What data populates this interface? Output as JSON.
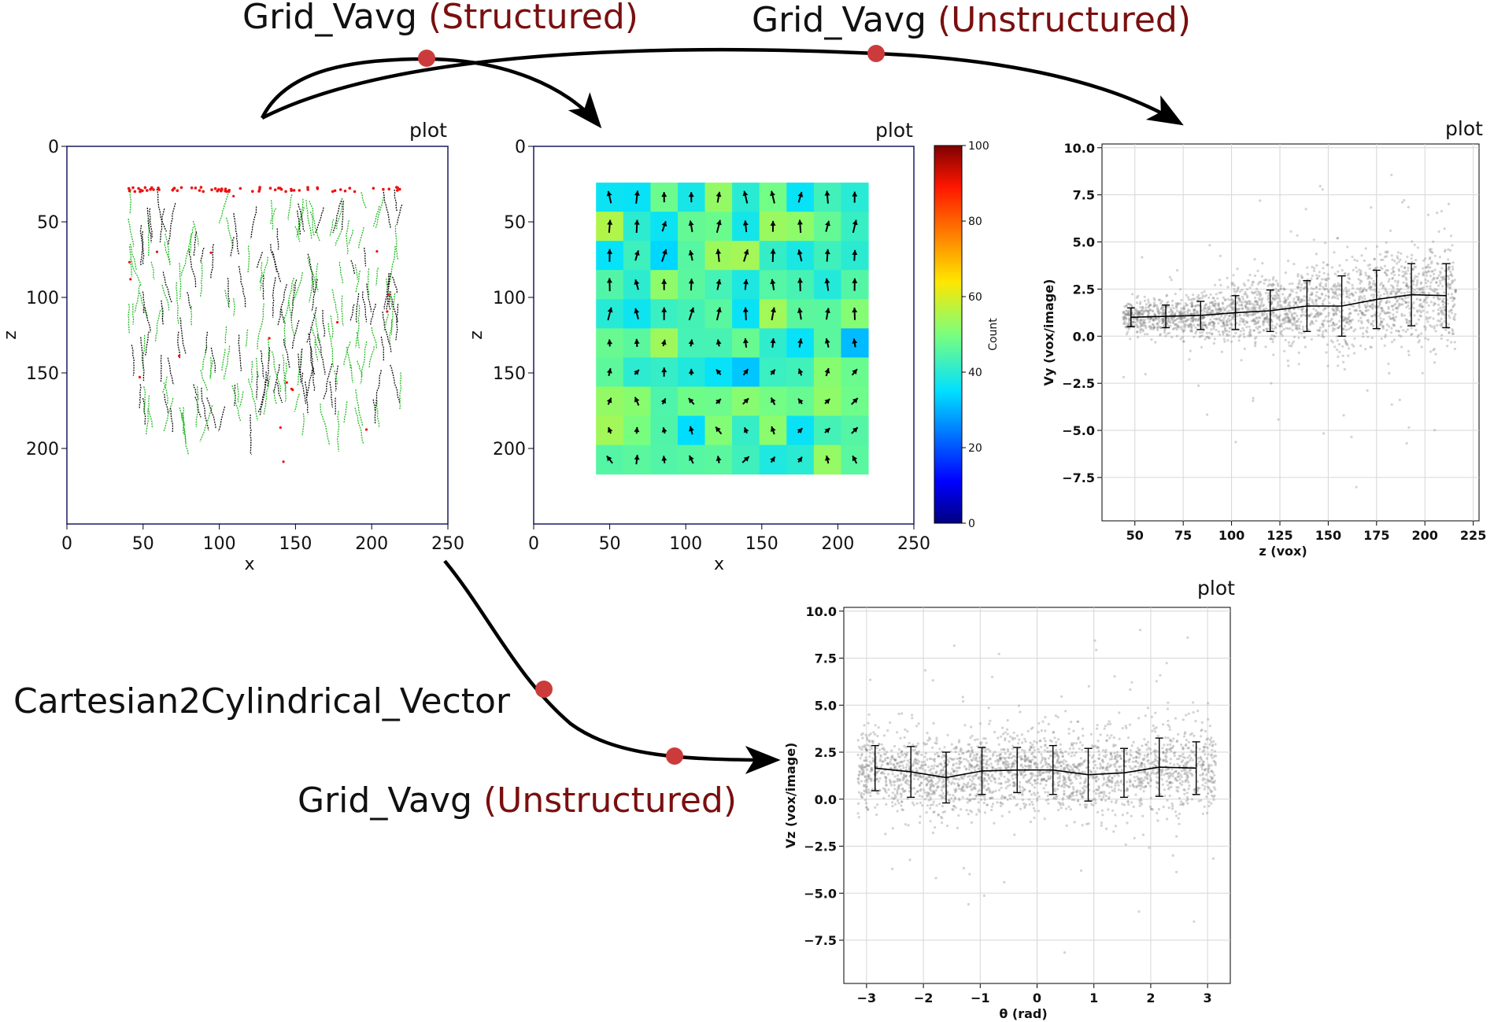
{
  "colors": {
    "accent": "#7a0f0f",
    "node": "#cc3b3b",
    "flow_arrow": "#000000",
    "panel_frame": "#1a1a66",
    "green_track": "#22bb22",
    "red_track_start": "#ee1111",
    "scatter_point": "#808080"
  },
  "labels": {
    "edge_top_left": {
      "name": "Grid_Vavg",
      "mode": "(Structured)"
    },
    "edge_top_right": {
      "name": "Grid_Vavg",
      "mode": "(Unstructured)"
    },
    "edge_middle": {
      "name": "Cartesian2Cylindrical_Vector"
    },
    "edge_bottom": {
      "name": "Grid_Vavg",
      "mode": "(Unstructured)"
    }
  },
  "panels": {
    "tracks": {
      "title": "plot",
      "xlabel": "x",
      "ylabel": "z",
      "xticks": [
        "0",
        "50",
        "100",
        "150",
        "200",
        "250"
      ],
      "yticks": [
        "0",
        "50",
        "100",
        "150",
        "200"
      ]
    },
    "grid": {
      "title": "plot",
      "xlabel": "x",
      "ylabel": "z",
      "xticks": [
        "0",
        "50",
        "100",
        "150",
        "200",
        "250"
      ],
      "yticks": [
        "0",
        "50",
        "100",
        "150",
        "200"
      ],
      "colorbar_label": "Count",
      "colorbar_ticks": [
        "0",
        "20",
        "40",
        "60",
        "80",
        "100"
      ]
    },
    "vy_profile": {
      "title": "plot",
      "xlabel": "z (vox)",
      "ylabel": "Vy (vox/image)",
      "xticks": [
        "50",
        "75",
        "100",
        "125",
        "150",
        "175",
        "200",
        "225"
      ],
      "yticks": [
        "10.0",
        "7.5",
        "5.0",
        "2.5",
        "0.0",
        "−2.5",
        "−5.0",
        "−7.5"
      ]
    },
    "vz_profile": {
      "title": "plot",
      "xlabel": "θ (rad)",
      "ylabel": "Vz (vox/image)",
      "xticks": [
        "−3",
        "−2",
        "−1",
        "0",
        "1",
        "2",
        "3"
      ],
      "yticks": [
        "10.0",
        "7.5",
        "5.0",
        "2.5",
        "0.0",
        "−2.5",
        "−5.0",
        "−7.5"
      ]
    }
  },
  "chart_data": [
    {
      "type": "scatter",
      "panel": "vy_profile",
      "title": "plot",
      "xlabel": "z (vox)",
      "ylabel": "Vy (vox/image)",
      "xlim": [
        33,
        228
      ],
      "ylim": [
        -9.8,
        10.2
      ],
      "grid": true,
      "binned_mean": {
        "x": [
          48,
          66,
          84,
          102,
          120,
          139,
          157,
          175,
          193,
          211
        ],
        "y": [
          1.0,
          1.05,
          1.1,
          1.25,
          1.35,
          1.6,
          1.6,
          1.95,
          2.2,
          2.15
        ],
        "err": [
          0.5,
          0.6,
          0.75,
          0.9,
          1.1,
          1.35,
          1.6,
          1.55,
          1.65,
          1.7
        ]
      }
    },
    {
      "type": "scatter",
      "panel": "vz_profile",
      "title": "plot",
      "xlabel": "θ (rad)",
      "ylabel": "Vz (vox/image)",
      "xlim": [
        -3.4,
        3.4
      ],
      "ylim": [
        -9.8,
        10.2
      ],
      "grid": true,
      "binned_mean": {
        "x": [
          -2.85,
          -2.22,
          -1.6,
          -0.97,
          -0.35,
          0.28,
          0.9,
          1.53,
          2.15,
          2.8
        ],
        "y": [
          1.65,
          1.45,
          1.15,
          1.5,
          1.55,
          1.55,
          1.3,
          1.4,
          1.7,
          1.65
        ],
        "err": [
          1.2,
          1.35,
          1.35,
          1.25,
          1.2,
          1.3,
          1.4,
          1.3,
          1.55,
          1.4
        ]
      }
    }
  ]
}
